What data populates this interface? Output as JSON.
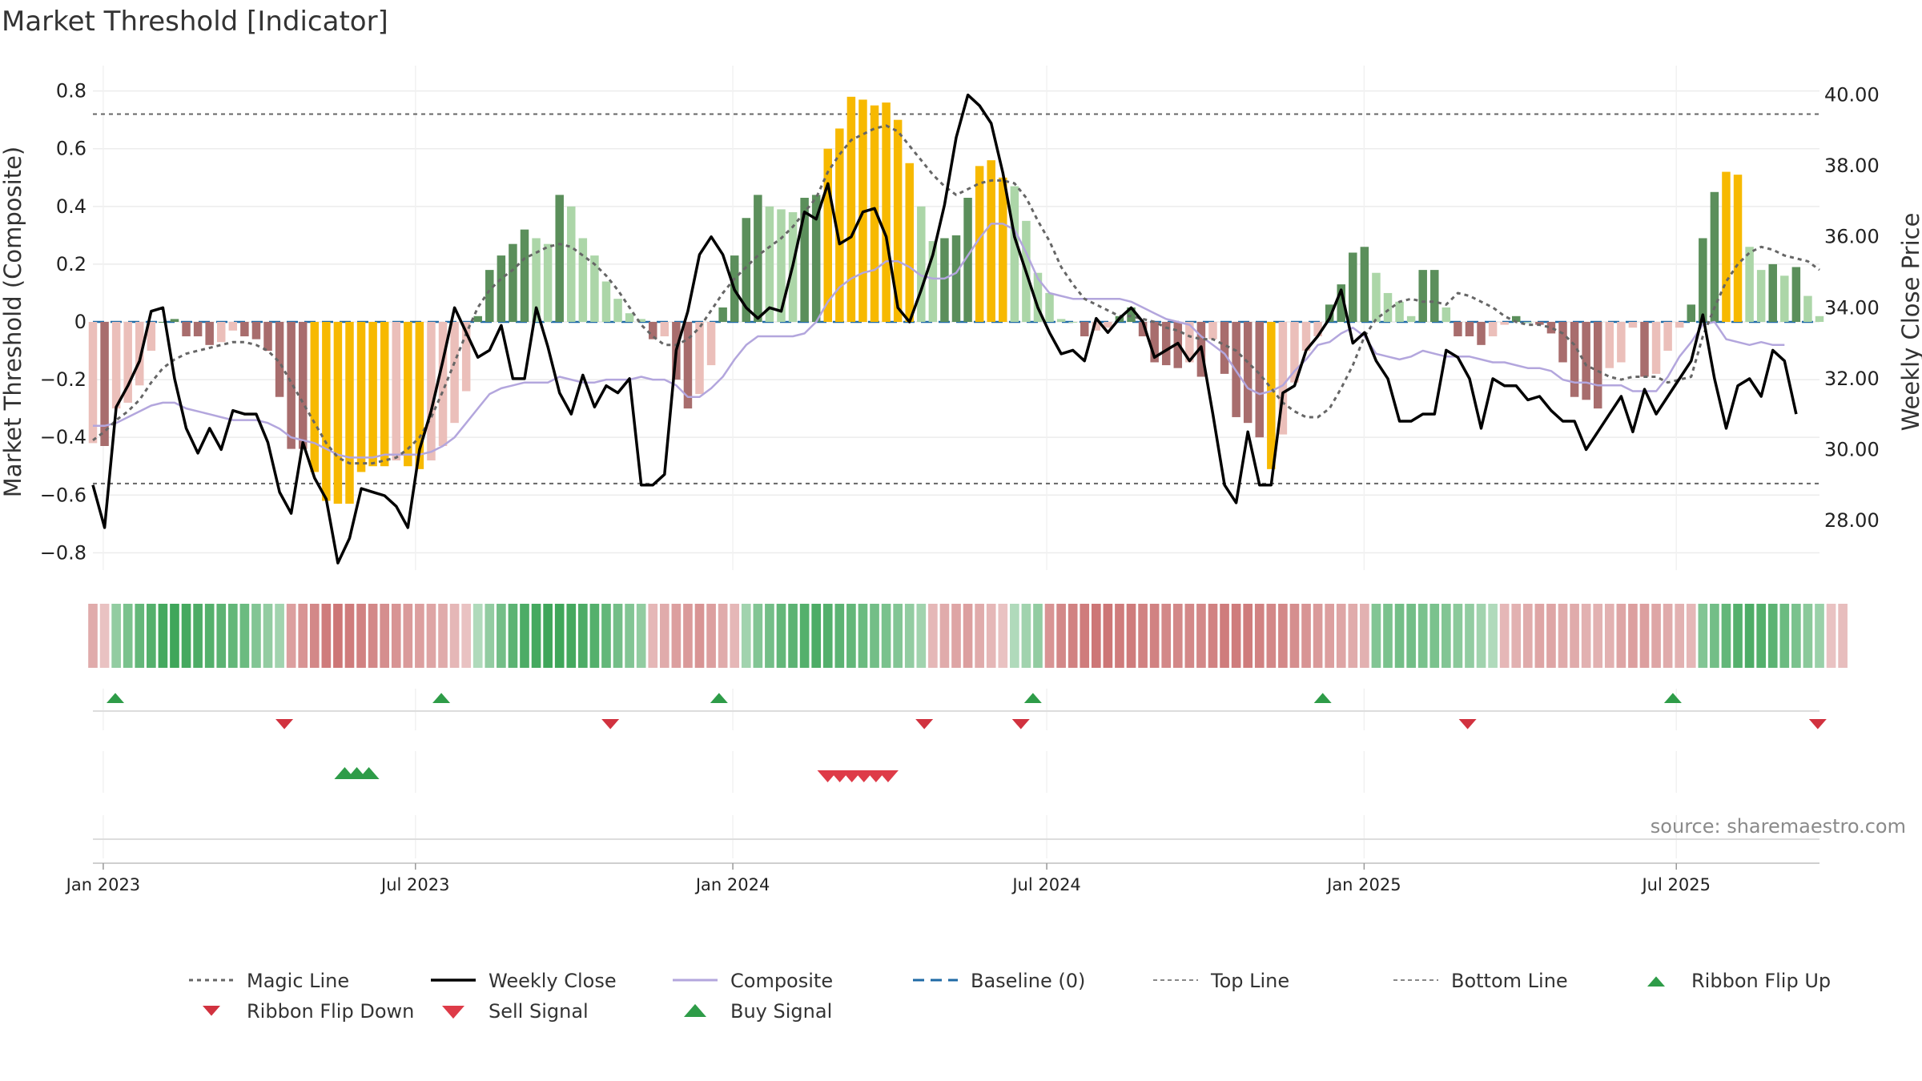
{
  "chart_data": {
    "type": "bar",
    "title": "Market Threshold [Indicator]",
    "ylabel": "Market Threshold (Composite)",
    "y2label": "Weekly Close Price",
    "ylim": [
      -0.86,
      0.86
    ],
    "y2lim": [
      26.6,
      40.6
    ],
    "yticks": [
      -0.8,
      -0.6,
      -0.4,
      -0.2,
      0,
      0.2,
      0.4,
      0.6,
      0.8
    ],
    "yticklabels": [
      "−0.8",
      "−0.6",
      "−0.4",
      "−0.2",
      "0",
      "0.2",
      "0.4",
      "0.6",
      "0.8"
    ],
    "y2ticks": [
      28,
      30,
      32,
      34,
      36,
      38,
      40
    ],
    "y2ticklabels": [
      "28.00",
      "30.00",
      "32.00",
      "34.00",
      "36.00",
      "38.00",
      "40.00"
    ],
    "x_start": "2022-12-26",
    "x_end": "2025-09-22",
    "xticks": [
      "2023-01-01",
      "2023-07-01",
      "2024-01-01",
      "2024-07-01",
      "2025-01-01",
      "2025-07-01"
    ],
    "xticklabels": [
      "Jan 2023",
      "Jul 2023",
      "Jan 2024",
      "Jul 2024",
      "Jan 2025",
      "Jul 2025"
    ],
    "grid": true,
    "legend_position": "bottom",
    "top_line": 0.72,
    "bottom_line": -0.56,
    "baseline": 0,
    "composite": [
      -0.42,
      -0.43,
      -0.3,
      -0.28,
      -0.22,
      -0.1,
      0,
      0.01,
      -0.05,
      -0.05,
      -0.08,
      -0.07,
      -0.03,
      -0.05,
      -0.06,
      -0.1,
      -0.26,
      -0.44,
      -0.44,
      -0.52,
      -0.62,
      -0.63,
      -0.63,
      -0.52,
      -0.5,
      -0.5,
      -0.48,
      -0.5,
      -0.51,
      -0.48,
      -0.43,
      -0.35,
      -0.24,
      0.02,
      0.18,
      0.23,
      0.27,
      0.32,
      0.29,
      0.27,
      0.44,
      0.4,
      0.29,
      0.23,
      0.14,
      0.08,
      0.03,
      0.01,
      -0.06,
      -0.05,
      -0.2,
      -0.3,
      -0.25,
      -0.15,
      0.05,
      0.23,
      0.36,
      0.44,
      0.4,
      0.39,
      0.38,
      0.43,
      0.44,
      0.6,
      0.67,
      0.78,
      0.77,
      0.75,
      0.76,
      0.7,
      0.55,
      0.4,
      0.28,
      0.29,
      0.3,
      0.43,
      0.54,
      0.56,
      0.5,
      0.47,
      0.35,
      0.17,
      0.1,
      0.01,
      0,
      -0.05,
      -0.03,
      -0.02,
      0.02,
      0.05,
      -0.05,
      -0.14,
      -0.15,
      -0.16,
      -0.14,
      -0.19,
      -0.06,
      -0.18,
      -0.33,
      -0.35,
      -0.4,
      -0.51,
      -0.39,
      -0.21,
      -0.1,
      -0.05,
      0.06,
      0.13,
      0.24,
      0.26,
      0.17,
      0.1,
      0.07,
      0.02,
      0.18,
      0.18,
      0.05,
      -0.05,
      -0.05,
      -0.08,
      -0.05,
      -0.01,
      0.02,
      0,
      -0.01,
      -0.04,
      -0.14,
      -0.26,
      -0.27,
      -0.3,
      -0.16,
      -0.14,
      -0.02,
      -0.19,
      -0.18,
      -0.1,
      -0.02,
      0.06,
      0.29,
      0.45,
      0.52,
      0.51,
      0.26,
      0.18,
      0.2,
      0.16,
      0.19,
      0.09,
      0.02
    ],
    "magic_line": [
      -0.41,
      -0.38,
      -0.34,
      -0.31,
      -0.27,
      -0.21,
      -0.16,
      -0.13,
      -0.11,
      -0.1,
      -0.09,
      -0.08,
      -0.07,
      -0.07,
      -0.08,
      -0.1,
      -0.14,
      -0.21,
      -0.28,
      -0.35,
      -0.42,
      -0.47,
      -0.49,
      -0.49,
      -0.49,
      -0.48,
      -0.47,
      -0.44,
      -0.4,
      -0.33,
      -0.24,
      -0.14,
      -0.04,
      0.05,
      0.11,
      0.15,
      0.18,
      0.22,
      0.24,
      0.26,
      0.27,
      0.26,
      0.23,
      0.2,
      0.16,
      0.11,
      0.05,
      -0.01,
      -0.05,
      -0.08,
      -0.08,
      -0.06,
      -0.02,
      0.04,
      0.1,
      0.15,
      0.19,
      0.23,
      0.26,
      0.29,
      0.33,
      0.38,
      0.43,
      0.52,
      0.58,
      0.63,
      0.65,
      0.67,
      0.68,
      0.66,
      0.61,
      0.56,
      0.51,
      0.47,
      0.44,
      0.46,
      0.48,
      0.49,
      0.49,
      0.48,
      0.43,
      0.35,
      0.28,
      0.19,
      0.13,
      0.08,
      0.06,
      0.04,
      0.02,
      0.02,
      0.01,
      0,
      -0.02,
      -0.03,
      -0.05,
      -0.06,
      -0.06,
      -0.08,
      -0.1,
      -0.14,
      -0.18,
      -0.23,
      -0.28,
      -0.31,
      -0.33,
      -0.33,
      -0.3,
      -0.23,
      -0.15,
      -0.05,
      0.01,
      0.04,
      0.07,
      0.08,
      0.07,
      0.07,
      0.06,
      0.1,
      0.09,
      0.07,
      0.05,
      0.02,
      0,
      -0.01,
      -0.01,
      -0.02,
      -0.04,
      -0.08,
      -0.15,
      -0.17,
      -0.19,
      -0.2,
      -0.19,
      -0.19,
      -0.19,
      -0.21,
      -0.2,
      -0.19,
      -0.05,
      0.05,
      0.14,
      0.2,
      0.24,
      0.26,
      0.25,
      0.23,
      0.22,
      0.21,
      0.18
    ],
    "composite_line": [
      -0.36,
      -0.36,
      -0.35,
      -0.33,
      -0.31,
      -0.29,
      -0.28,
      -0.28,
      -0.3,
      -0.31,
      -0.32,
      -0.33,
      -0.34,
      -0.34,
      -0.34,
      -0.35,
      -0.37,
      -0.4,
      -0.41,
      -0.42,
      -0.44,
      -0.46,
      -0.47,
      -0.47,
      -0.47,
      -0.46,
      -0.46,
      -0.46,
      -0.46,
      -0.45,
      -0.43,
      -0.4,
      -0.35,
      -0.3,
      -0.25,
      -0.23,
      -0.22,
      -0.21,
      -0.21,
      -0.21,
      -0.19,
      -0.2,
      -0.21,
      -0.21,
      -0.2,
      -0.2,
      -0.2,
      -0.19,
      -0.2,
      -0.2,
      -0.22,
      -0.26,
      -0.26,
      -0.23,
      -0.19,
      -0.13,
      -0.08,
      -0.05,
      -0.05,
      -0.05,
      -0.05,
      -0.04,
      0,
      0.07,
      0.12,
      0.15,
      0.17,
      0.18,
      0.21,
      0.21,
      0.19,
      0.16,
      0.15,
      0.15,
      0.17,
      0.23,
      0.29,
      0.34,
      0.34,
      0.32,
      0.24,
      0.15,
      0.1,
      0.09,
      0.08,
      0.08,
      0.08,
      0.08,
      0.08,
      0.07,
      0.05,
      0.03,
      0.01,
      0,
      -0.01,
      -0.05,
      -0.08,
      -0.11,
      -0.17,
      -0.23,
      -0.25,
      -0.24,
      -0.22,
      -0.17,
      -0.13,
      -0.08,
      -0.07,
      -0.04,
      -0.02,
      -0.05,
      -0.11,
      -0.12,
      -0.13,
      -0.12,
      -0.1,
      -0.11,
      -0.12,
      -0.12,
      -0.12,
      -0.13,
      -0.14,
      -0.14,
      -0.15,
      -0.16,
      -0.16,
      -0.17,
      -0.2,
      -0.21,
      -0.21,
      -0.22,
      -0.22,
      -0.22,
      -0.24,
      -0.24,
      -0.24,
      -0.19,
      -0.12,
      -0.07,
      -0.01,
      0,
      -0.06,
      -0.07,
      -0.08,
      -0.07,
      -0.08,
      -0.08
    ],
    "weekly_close": [
      29.0,
      27.8,
      31.2,
      31.8,
      32.5,
      33.9,
      34.0,
      32.0,
      30.6,
      29.9,
      30.6,
      30.0,
      31.1,
      31.0,
      31.0,
      30.2,
      28.8,
      28.2,
      30.2,
      29.2,
      28.6,
      26.8,
      27.5,
      28.9,
      28.8,
      28.7,
      28.4,
      27.8,
      30.0,
      31.1,
      32.5,
      34.0,
      33.3,
      32.6,
      32.8,
      33.5,
      32.0,
      32.0,
      34.0,
      32.9,
      31.6,
      31.0,
      32.1,
      31.2,
      31.8,
      31.6,
      32.0,
      29.0,
      29.0,
      29.3,
      32.8,
      33.9,
      35.5,
      36.0,
      35.5,
      34.5,
      34.0,
      33.7,
      34.0,
      33.9,
      35.2,
      36.7,
      36.5,
      37.5,
      35.8,
      36.0,
      36.7,
      36.8,
      36.0,
      34.0,
      33.6,
      34.5,
      35.5,
      36.9,
      38.8,
      40.0,
      39.7,
      39.2,
      37.8,
      36.0,
      35.0,
      34.0,
      33.3,
      32.7,
      32.8,
      32.5,
      33.7,
      33.3,
      33.7,
      34.0,
      33.6,
      32.6,
      32.8,
      33.0,
      32.5,
      32.9,
      31.0,
      29.0,
      28.5,
      30.5,
      29.0,
      29.0,
      31.6,
      31.8,
      32.8,
      33.2,
      33.7,
      34.5,
      33.0,
      33.3,
      32.5,
      32.0,
      30.8,
      30.8,
      31.0,
      31.0,
      32.8,
      32.6,
      32.0,
      30.6,
      32.0,
      31.8,
      31.8,
      31.4,
      31.5,
      31.1,
      30.8,
      30.8,
      30.0,
      30.5,
      31.0,
      31.5,
      30.5,
      31.7,
      31.0,
      31.5,
      32.0,
      32.5,
      33.8,
      32.0,
      30.6,
      31.8,
      32.0,
      31.5,
      32.8,
      32.5,
      31.0
    ],
    "ribbon_strength": [
      -0.4,
      -0.2,
      0.4,
      0.55,
      0.7,
      0.8,
      0.9,
      0.95,
      0.9,
      0.85,
      0.8,
      0.75,
      0.7,
      0.65,
      0.5,
      0.4,
      0.3,
      -0.5,
      -0.6,
      -0.7,
      -0.8,
      -0.85,
      -0.8,
      -0.75,
      -0.7,
      -0.65,
      -0.6,
      -0.55,
      -0.5,
      -0.45,
      -0.4,
      -0.3,
      -0.2,
      0.2,
      0.4,
      0.6,
      0.75,
      0.85,
      0.9,
      0.95,
      0.95,
      0.9,
      0.85,
      0.8,
      0.7,
      0.6,
      0.5,
      0.4,
      -0.3,
      -0.4,
      -0.5,
      -0.55,
      -0.6,
      -0.5,
      -0.4,
      -0.3,
      0.3,
      0.5,
      0.6,
      0.7,
      0.75,
      0.8,
      0.85,
      0.8,
      0.75,
      0.7,
      0.65,
      0.6,
      0.55,
      0.5,
      0.4,
      0.3,
      -0.3,
      -0.4,
      -0.45,
      -0.5,
      -0.4,
      -0.3,
      -0.2,
      0.2,
      0.3,
      0.4,
      -0.6,
      -0.7,
      -0.75,
      -0.8,
      -0.85,
      -0.85,
      -0.8,
      -0.8,
      -0.75,
      -0.75,
      -0.7,
      -0.7,
      -0.7,
      -0.7,
      -0.75,
      -0.8,
      -0.8,
      -0.8,
      -0.75,
      -0.7,
      -0.7,
      -0.65,
      -0.6,
      -0.55,
      -0.5,
      -0.45,
      -0.4,
      -0.35,
      0.5,
      0.55,
      0.6,
      0.6,
      0.55,
      0.55,
      0.5,
      0.45,
      0.4,
      0.3,
      0.2,
      -0.3,
      -0.35,
      -0.4,
      -0.45,
      -0.45,
      -0.4,
      -0.4,
      -0.35,
      -0.35,
      -0.35,
      -0.45,
      -0.5,
      -0.5,
      -0.45,
      -0.4,
      -0.35,
      -0.3,
      0.5,
      0.6,
      0.7,
      0.8,
      0.85,
      0.8,
      0.75,
      0.65,
      0.55,
      0.45,
      0.35,
      -0.2,
      -0.25
    ],
    "ribbon_flip_up": [
      "2023-01-08",
      "2023-07-16",
      "2023-12-24",
      "2024-06-23",
      "2024-12-08",
      "2025-06-29"
    ],
    "ribbon_flip_down": [
      "2023-04-16",
      "2023-10-22",
      "2024-04-21",
      "2024-06-16",
      "2025-03-02",
      "2025-09-21"
    ],
    "buy_signal": [
      "2023-05-21",
      "2023-05-28",
      "2023-06-04"
    ],
    "sell_signal": [
      "2024-02-25",
      "2024-03-03",
      "2024-03-10",
      "2024-03-17",
      "2024-03-24",
      "2024-03-31"
    ],
    "legend": [
      "Magic Line",
      "Weekly Close",
      "Composite",
      "Baseline (0)",
      "Top Line",
      "Bottom Line",
      "Ribbon Flip Up",
      "Ribbon Flip Down",
      "Sell Signal",
      "Buy Signal"
    ],
    "source": "source: sharemaestro.com",
    "colors": {
      "strong_pos": "#5b8f5b",
      "weak_pos": "#acd6a8",
      "strong_neg": "#a86d6d",
      "weak_neg": "#ebbfba",
      "extreme": "#f7b900",
      "weekly_close": "#000000",
      "composite_line": "#b3a6dd",
      "magic_line": "#666666",
      "baseline": "#1f6aa5",
      "ribbon_up": "#3fa65a",
      "ribbon_down": "#c96c6c",
      "flip_up": "#2e9c48",
      "flip_down": "#d1323f",
      "buy": "#2e9c48",
      "sell": "#de3b48"
    }
  }
}
